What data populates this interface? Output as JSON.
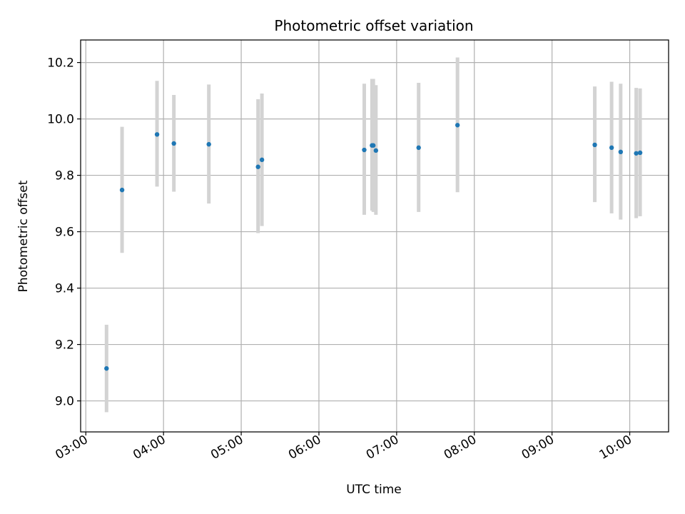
{
  "chart_data": {
    "type": "scatter",
    "title": "Photometric offset variation",
    "xlabel": "UTC time",
    "ylabel": "Photometric offset",
    "x_ticks": [
      "03:00",
      "04:00",
      "05:00",
      "06:00",
      "07:00",
      "08:00",
      "09:00",
      "10:00"
    ],
    "y_ticks": [
      "9.0",
      "9.2",
      "9.4",
      "9.6",
      "9.8",
      "10.0",
      "10.2"
    ],
    "xlim": [
      "02:56",
      "10:30"
    ],
    "ylim": [
      8.89,
      10.28
    ],
    "grid": true,
    "colors": {
      "point": "#1f77b4",
      "errorbar": "#d3d3d3",
      "grid": "#b0b0b0"
    },
    "points": [
      {
        "x": "03:16",
        "y": 9.115,
        "yerr_low": 8.96,
        "yerr_high": 9.27
      },
      {
        "x": "03:28",
        "y": 9.748,
        "yerr_low": 9.525,
        "yerr_high": 9.972
      },
      {
        "x": "03:55",
        "y": 9.945,
        "yerr_low": 9.76,
        "yerr_high": 10.135
      },
      {
        "x": "04:08",
        "y": 9.913,
        "yerr_low": 9.742,
        "yerr_high": 10.085
      },
      {
        "x": "04:35",
        "y": 9.91,
        "yerr_low": 9.7,
        "yerr_high": 10.122
      },
      {
        "x": "05:13",
        "y": 9.83,
        "yerr_low": 9.595,
        "yerr_high": 10.07
      },
      {
        "x": "05:16",
        "y": 9.855,
        "yerr_low": 9.62,
        "yerr_high": 10.09
      },
      {
        "x": "06:35",
        "y": 9.89,
        "yerr_low": 9.66,
        "yerr_high": 10.125
      },
      {
        "x": "06:41",
        "y": 9.906,
        "yerr_low": 9.675,
        "yerr_high": 10.142
      },
      {
        "x": "06:42",
        "y": 9.906,
        "yerr_low": 9.67,
        "yerr_high": 10.142
      },
      {
        "x": "06:44",
        "y": 9.888,
        "yerr_low": 9.66,
        "yerr_high": 10.12
      },
      {
        "x": "07:17",
        "y": 9.898,
        "yerr_low": 9.67,
        "yerr_high": 10.128
      },
      {
        "x": "07:47",
        "y": 9.978,
        "yerr_low": 9.74,
        "yerr_high": 10.218
      },
      {
        "x": "09:33",
        "y": 9.908,
        "yerr_low": 9.705,
        "yerr_high": 10.115
      },
      {
        "x": "09:46",
        "y": 9.898,
        "yerr_low": 9.665,
        "yerr_high": 10.132
      },
      {
        "x": "09:53",
        "y": 9.883,
        "yerr_low": 9.643,
        "yerr_high": 10.125
      },
      {
        "x": "10:05",
        "y": 9.878,
        "yerr_low": 9.648,
        "yerr_high": 10.11
      },
      {
        "x": "10:08",
        "y": 9.88,
        "yerr_low": 9.655,
        "yerr_high": 10.108
      }
    ]
  }
}
